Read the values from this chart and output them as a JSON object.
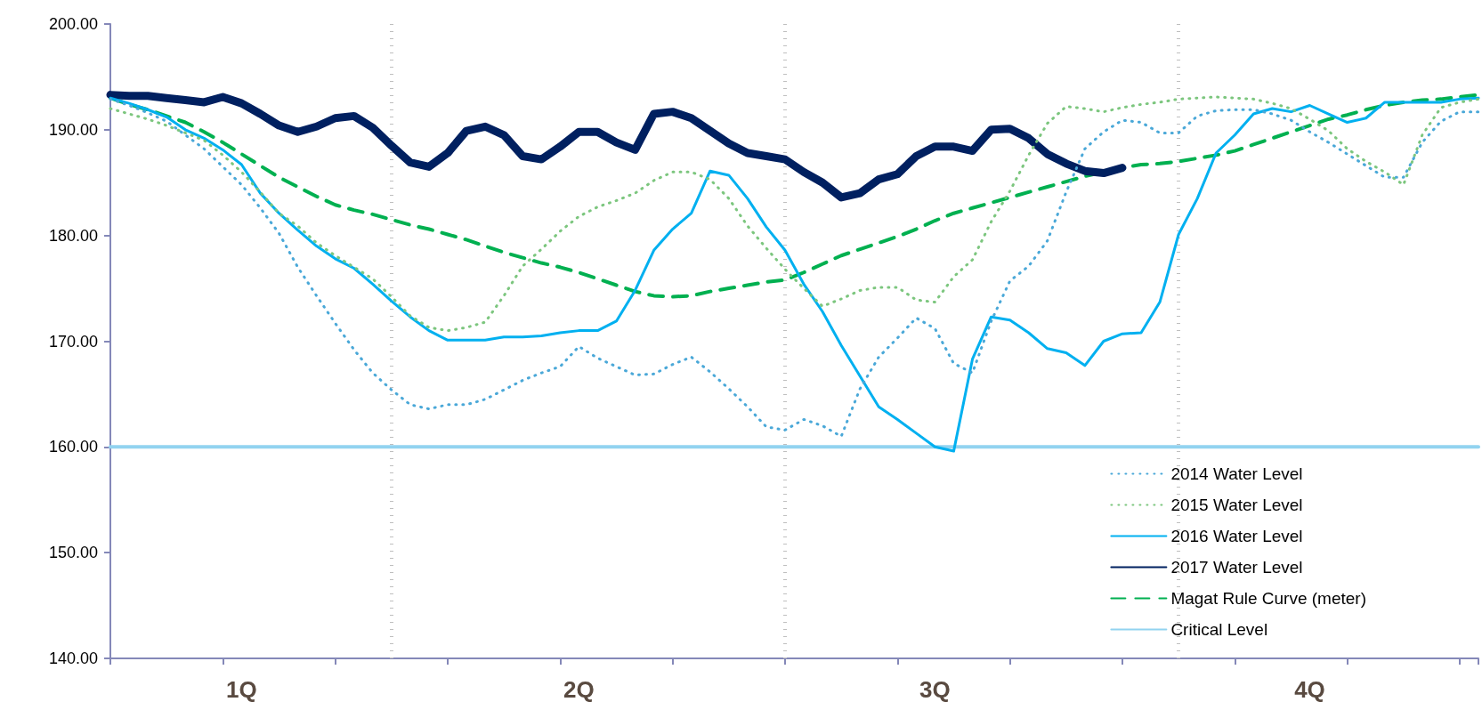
{
  "chart_data": {
    "type": "line",
    "ylim": [
      140,
      200
    ],
    "categories": [
      null,
      null,
      null,
      null,
      null,
      null,
      null,
      "1Q",
      null,
      null,
      null,
      null,
      null,
      null,
      null,
      null,
      null,
      null,
      null,
      null,
      null,
      null,
      null,
      null,
      null,
      "2Q",
      null,
      null,
      null,
      null,
      null,
      null,
      null,
      null,
      null,
      null,
      null,
      null,
      null,
      null,
      null,
      null,
      null,
      null,
      "3Q",
      null,
      null,
      null,
      null,
      null,
      null,
      null,
      null,
      null,
      null,
      null,
      null,
      null,
      null,
      null,
      null,
      null,
      null,
      null,
      "4Q",
      null,
      null,
      null,
      null,
      null,
      null,
      null,
      null,
      null
    ],
    "yticks": [
      {
        "value": 140,
        "label": "140.00"
      },
      {
        "value": 150,
        "label": "150.00"
      },
      {
        "value": 160,
        "label": "160.00"
      },
      {
        "value": 170,
        "label": "170.00"
      },
      {
        "value": 180,
        "label": "180.00"
      },
      {
        "value": 190,
        "label": "190.00"
      },
      {
        "value": 200,
        "label": "200.00"
      }
    ],
    "grid": false,
    "legend": "bottom right",
    "series": [
      {
        "name": "2014 Water Level",
        "color": "#4aa8d8",
        "line_style": "dotted",
        "values": [
          192.9,
          192.3,
          191.6,
          190.8,
          189.5,
          188.2,
          186.5,
          184.8,
          182.6,
          180.2,
          177,
          174.3,
          171.7,
          169.2,
          167,
          165.4,
          164,
          163.6,
          164,
          164,
          164.5,
          165.4,
          166.3,
          167,
          167.6,
          169.5,
          168.4,
          167.6,
          166.8,
          166.9,
          167.8,
          168.5,
          167.1,
          165.5,
          163.8,
          161.9,
          161.6,
          162.6,
          162,
          161,
          165.5,
          168.5,
          170.3,
          172.2,
          171.2,
          167.9,
          167,
          171.9,
          175.7,
          177.1,
          179.5,
          184.1,
          188.2,
          189.8,
          190.9,
          190.7,
          189.7,
          189.7,
          191.3,
          191.8,
          191.9,
          191.9,
          191.5,
          190.9,
          189.8,
          188.8,
          187.7,
          186.6,
          185.5,
          185.5,
          188.8,
          190.8,
          191.7,
          191.7
        ]
      },
      {
        "name": "2015 Water Level",
        "color": "#7cc67e",
        "line_style": "dotted",
        "values": [
          192,
          191.5,
          191,
          190.4,
          189.7,
          189,
          187.6,
          186,
          184.1,
          182.1,
          180.9,
          179.3,
          178.1,
          177,
          175.9,
          174.2,
          172.4,
          171.3,
          171,
          171.3,
          171.8,
          174.3,
          177.1,
          178.7,
          180.4,
          181.8,
          182.7,
          183.3,
          184,
          185.2,
          186,
          186,
          185.3,
          183.5,
          180.9,
          178.8,
          176.8,
          175,
          173.3,
          174,
          174.8,
          175.1,
          175.1,
          173.9,
          173.7,
          176.1,
          177.7,
          181.3,
          184.2,
          187.6,
          190.6,
          192.2,
          192,
          191.7,
          192.1,
          192.4,
          192.6,
          192.9,
          193,
          193.1,
          193,
          192.9,
          192.5,
          192,
          191,
          189.9,
          188.2,
          187,
          186,
          184.8,
          189.5,
          192.1,
          192.6,
          192.9
        ]
      },
      {
        "name": "2016 Water Level",
        "color": "#00b0f0",
        "line_style": "solid",
        "values": [
          193,
          192.5,
          191.9,
          191.2,
          190,
          189.2,
          188.1,
          186.7,
          184,
          182.1,
          180.5,
          179,
          177.8,
          176.9,
          175.4,
          173.8,
          172.3,
          171,
          170.1,
          170.1,
          170.1,
          170.4,
          170.4,
          170.5,
          170.8,
          171,
          171,
          171.9,
          174.8,
          178.6,
          180.6,
          182.1,
          186.1,
          185.7,
          183.5,
          180.8,
          178.6,
          175.4,
          172.8,
          169.6,
          166.7,
          163.8,
          162.6,
          161.3,
          160,
          159.6,
          168.3,
          172.3,
          172,
          170.8,
          169.3,
          168.9,
          167.7,
          170,
          170.7,
          170.8,
          173.7,
          180.1,
          183.5,
          187.8,
          189.5,
          191.5,
          192,
          191.7,
          192.3,
          191.5,
          190.7,
          191.1,
          192.6,
          192.6,
          192.6,
          192.6,
          192.9,
          193
        ]
      },
      {
        "name": "2017 Water Level",
        "color": "#002060",
        "line_style": "solid",
        "values": [
          193.3,
          193.2,
          193.2,
          193,
          192.8,
          192.6,
          193.1,
          192.5,
          191.5,
          190.4,
          189.8,
          190.3,
          191.1,
          191.3,
          190.2,
          188.5,
          186.9,
          186.5,
          187.8,
          189.9,
          190.3,
          189.5,
          187.5,
          187.2,
          188.4,
          189.8,
          189.8,
          188.8,
          188.1,
          191.5,
          191.7,
          191.1,
          189.9,
          188.7,
          187.8,
          187.5,
          187.2,
          186,
          185,
          183.6,
          184,
          185.3,
          185.8,
          187.5,
          188.4,
          188.4,
          188,
          190,
          190.1,
          189.2,
          187.7,
          186.8,
          186.1,
          185.9,
          186.4,
          null,
          null,
          null,
          null,
          null,
          null,
          null,
          null,
          null,
          null,
          null,
          null,
          null,
          null,
          null,
          null,
          null,
          null,
          null
        ]
      },
      {
        "name": "Magat Rule Curve (meter)",
        "color": "#00b050",
        "line_style": "dashed",
        "values": [
          193,
          192.4,
          191.9,
          191.3,
          190.7,
          189.8,
          188.8,
          187.7,
          186.6,
          185.5,
          184.6,
          183.7,
          182.9,
          182.4,
          182,
          181.5,
          181,
          180.6,
          180.1,
          179.6,
          179,
          178.4,
          177.9,
          177.4,
          177,
          176.5,
          175.9,
          175.3,
          174.7,
          174.3,
          174.2,
          174.3,
          174.7,
          175,
          175.3,
          175.6,
          175.8,
          176.5,
          177.3,
          178.1,
          178.7,
          179.3,
          179.9,
          180.6,
          181.4,
          182.1,
          182.6,
          183.1,
          183.6,
          184.1,
          184.6,
          185.1,
          185.6,
          186,
          186.4,
          186.7,
          186.8,
          187,
          187.3,
          187.6,
          188,
          188.6,
          189.2,
          189.8,
          190.4,
          191,
          191.4,
          191.9,
          192.3,
          192.6,
          192.8,
          192.9,
          193.1,
          193.3
        ]
      },
      {
        "name": "Critical Level",
        "color": "#92d3f0",
        "line_style": "solid",
        "values": [
          160,
          160,
          160,
          160,
          160,
          160,
          160,
          160,
          160,
          160,
          160,
          160,
          160,
          160,
          160,
          160,
          160,
          160,
          160,
          160,
          160,
          160,
          160,
          160,
          160,
          160,
          160,
          160,
          160,
          160,
          160,
          160,
          160,
          160,
          160,
          160,
          160,
          160,
          160,
          160,
          160,
          160,
          160,
          160,
          160,
          160,
          160,
          160,
          160,
          160,
          160,
          160,
          160,
          160,
          160,
          160,
          160,
          160,
          160,
          160,
          160,
          160,
          160,
          160,
          160,
          160,
          160,
          160,
          160,
          160,
          160,
          160,
          160,
          160
        ]
      }
    ]
  }
}
